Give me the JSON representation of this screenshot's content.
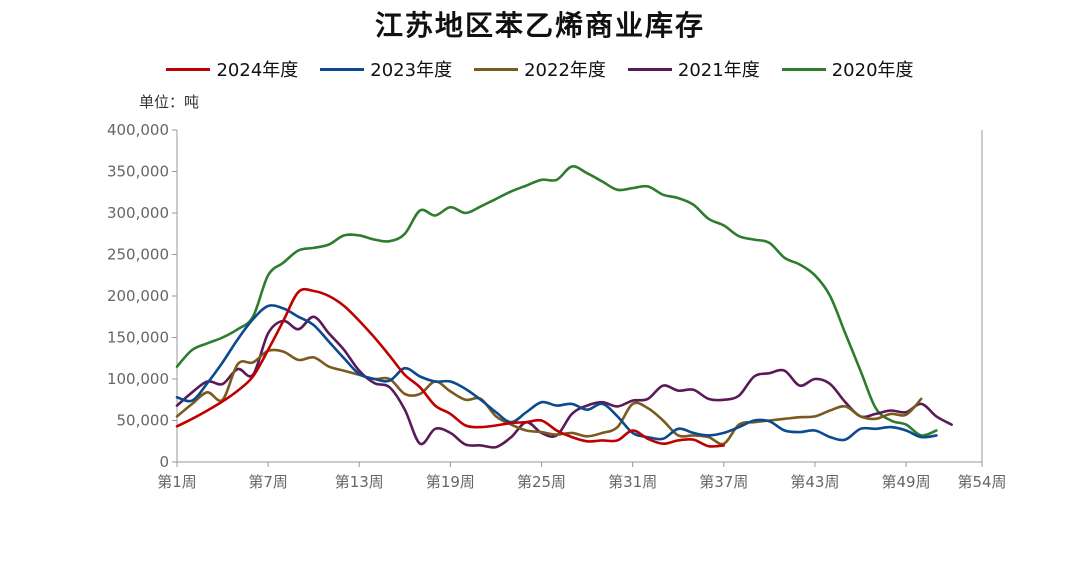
{
  "chart_data": {
    "type": "line",
    "title": "江苏地区苯乙烯商业库存",
    "unit_label": "单位：吨",
    "ylim": [
      0,
      400000
    ],
    "xlim": [
      1,
      54
    ],
    "y_ticks": [
      {
        "value": 0,
        "label": "0"
      },
      {
        "value": 50000,
        "label": "50,000"
      },
      {
        "value": 100000,
        "label": "100,000"
      },
      {
        "value": 150000,
        "label": "150,000"
      },
      {
        "value": 200000,
        "label": "200,000"
      },
      {
        "value": 250000,
        "label": "250,000"
      },
      {
        "value": 300000,
        "label": "300,000"
      },
      {
        "value": 350000,
        "label": "350,000"
      },
      {
        "value": 400000,
        "label": "400,000"
      }
    ],
    "x_ticks": [
      {
        "value": 1,
        "label": "第1周"
      },
      {
        "value": 7,
        "label": "第7周"
      },
      {
        "value": 13,
        "label": "第13周"
      },
      {
        "value": 19,
        "label": "第19周"
      },
      {
        "value": 25,
        "label": "第25周"
      },
      {
        "value": 31,
        "label": "第31周"
      },
      {
        "value": 37,
        "label": "第37周"
      },
      {
        "value": 43,
        "label": "第43周"
      },
      {
        "value": 49,
        "label": "第49周"
      },
      {
        "value": 54,
        "label": "第54周"
      }
    ],
    "legend_placement": "top",
    "grid": false,
    "series": [
      {
        "name": "2024年度",
        "color": "#c00000",
        "points": [
          [
            1,
            43000
          ],
          [
            2,
            52000
          ],
          [
            3,
            62000
          ],
          [
            4,
            73000
          ],
          [
            5,
            86000
          ],
          [
            6,
            103000
          ],
          [
            7,
            135000
          ],
          [
            8,
            170000
          ],
          [
            9,
            205000
          ],
          [
            10,
            206000
          ],
          [
            11,
            200000
          ],
          [
            12,
            188000
          ],
          [
            13,
            170000
          ],
          [
            14,
            150000
          ],
          [
            15,
            128000
          ],
          [
            16,
            105000
          ],
          [
            17,
            90000
          ],
          [
            18,
            68000
          ],
          [
            19,
            58000
          ],
          [
            20,
            44000
          ],
          [
            21,
            42000
          ],
          [
            22,
            44000
          ],
          [
            23,
            47000
          ],
          [
            24,
            48000
          ],
          [
            25,
            50000
          ],
          [
            26,
            38000
          ],
          [
            27,
            30000
          ],
          [
            28,
            25000
          ],
          [
            29,
            26000
          ],
          [
            30,
            26000
          ],
          [
            31,
            38000
          ],
          [
            32,
            28000
          ],
          [
            33,
            22000
          ],
          [
            34,
            26000
          ],
          [
            35,
            27000
          ],
          [
            36,
            19000
          ],
          [
            37,
            20000
          ]
        ]
      },
      {
        "name": "2023年度",
        "color": "#0b4a8f",
        "points": [
          [
            1,
            78000
          ],
          [
            2,
            74000
          ],
          [
            3,
            95000
          ],
          [
            4,
            120000
          ],
          [
            5,
            148000
          ],
          [
            6,
            172000
          ],
          [
            7,
            188000
          ],
          [
            8,
            185000
          ],
          [
            9,
            175000
          ],
          [
            10,
            165000
          ],
          [
            11,
            145000
          ],
          [
            12,
            125000
          ],
          [
            13,
            106000
          ],
          [
            14,
            100000
          ],
          [
            15,
            98000
          ],
          [
            16,
            113000
          ],
          [
            17,
            103000
          ],
          [
            18,
            97000
          ],
          [
            19,
            97000
          ],
          [
            20,
            88000
          ],
          [
            21,
            75000
          ],
          [
            22,
            60000
          ],
          [
            23,
            48000
          ],
          [
            24,
            60000
          ],
          [
            25,
            72000
          ],
          [
            26,
            68000
          ],
          [
            27,
            70000
          ],
          [
            28,
            63000
          ],
          [
            29,
            70000
          ],
          [
            30,
            55000
          ],
          [
            31,
            35000
          ],
          [
            32,
            30000
          ],
          [
            33,
            28000
          ],
          [
            34,
            40000
          ],
          [
            35,
            35000
          ],
          [
            36,
            32000
          ],
          [
            37,
            35000
          ],
          [
            38,
            42000
          ],
          [
            39,
            50000
          ],
          [
            40,
            49000
          ],
          [
            41,
            38000
          ],
          [
            42,
            36000
          ],
          [
            43,
            38000
          ],
          [
            44,
            30000
          ],
          [
            45,
            27000
          ],
          [
            46,
            40000
          ],
          [
            47,
            40000
          ],
          [
            48,
            42000
          ],
          [
            49,
            38000
          ],
          [
            50,
            30000
          ],
          [
            51,
            32000
          ]
        ]
      },
      {
        "name": "2022年度",
        "color": "#7a5a1e",
        "points": [
          [
            1,
            55000
          ],
          [
            2,
            70000
          ],
          [
            3,
            84000
          ],
          [
            4,
            75000
          ],
          [
            5,
            118000
          ],
          [
            6,
            120000
          ],
          [
            7,
            134000
          ],
          [
            8,
            133000
          ],
          [
            9,
            123000
          ],
          [
            10,
            126000
          ],
          [
            11,
            115000
          ],
          [
            12,
            110000
          ],
          [
            13,
            105000
          ],
          [
            14,
            100000
          ],
          [
            15,
            100000
          ],
          [
            16,
            82000
          ],
          [
            17,
            82000
          ],
          [
            18,
            97000
          ],
          [
            19,
            85000
          ],
          [
            20,
            75000
          ],
          [
            21,
            76000
          ],
          [
            22,
            55000
          ],
          [
            23,
            45000
          ],
          [
            24,
            38000
          ],
          [
            25,
            36000
          ],
          [
            26,
            33000
          ],
          [
            27,
            35000
          ],
          [
            28,
            31000
          ],
          [
            29,
            35000
          ],
          [
            30,
            42000
          ],
          [
            31,
            70000
          ],
          [
            32,
            65000
          ],
          [
            33,
            50000
          ],
          [
            34,
            32000
          ],
          [
            35,
            32000
          ],
          [
            36,
            30000
          ],
          [
            37,
            22000
          ],
          [
            38,
            45000
          ],
          [
            39,
            48000
          ],
          [
            40,
            50000
          ],
          [
            41,
            52000
          ],
          [
            42,
            54000
          ],
          [
            43,
            55000
          ],
          [
            44,
            62000
          ],
          [
            45,
            67000
          ],
          [
            46,
            55000
          ],
          [
            47,
            52000
          ],
          [
            48,
            58000
          ],
          [
            49,
            57000
          ],
          [
            50,
            76000
          ]
        ]
      },
      {
        "name": "2021年度",
        "color": "#5a1a5a",
        "points": [
          [
            1,
            68000
          ],
          [
            2,
            84000
          ],
          [
            3,
            97000
          ],
          [
            4,
            94000
          ],
          [
            5,
            112000
          ],
          [
            6,
            105000
          ],
          [
            7,
            155000
          ],
          [
            8,
            170000
          ],
          [
            9,
            160000
          ],
          [
            10,
            175000
          ],
          [
            11,
            155000
          ],
          [
            12,
            135000
          ],
          [
            13,
            110000
          ],
          [
            14,
            95000
          ],
          [
            15,
            90000
          ],
          [
            16,
            63000
          ],
          [
            17,
            22000
          ],
          [
            18,
            40000
          ],
          [
            19,
            35000
          ],
          [
            20,
            21000
          ],
          [
            21,
            20000
          ],
          [
            22,
            18000
          ],
          [
            23,
            30000
          ],
          [
            24,
            48000
          ],
          [
            25,
            35000
          ],
          [
            26,
            32000
          ],
          [
            27,
            58000
          ],
          [
            28,
            68000
          ],
          [
            29,
            72000
          ],
          [
            30,
            67000
          ],
          [
            31,
            74000
          ],
          [
            32,
            76000
          ],
          [
            33,
            92000
          ],
          [
            34,
            86000
          ],
          [
            35,
            87000
          ],
          [
            36,
            76000
          ],
          [
            37,
            75000
          ],
          [
            38,
            80000
          ],
          [
            39,
            103000
          ],
          [
            40,
            107000
          ],
          [
            41,
            110000
          ],
          [
            42,
            92000
          ],
          [
            43,
            100000
          ],
          [
            44,
            94000
          ],
          [
            45,
            72000
          ],
          [
            46,
            55000
          ],
          [
            47,
            58000
          ],
          [
            48,
            62000
          ],
          [
            49,
            60000
          ],
          [
            50,
            70000
          ],
          [
            51,
            55000
          ],
          [
            52,
            45000
          ]
        ]
      },
      {
        "name": "2020年度",
        "color": "#2e7d2e",
        "points": [
          [
            1,
            115000
          ],
          [
            2,
            135000
          ],
          [
            3,
            143000
          ],
          [
            4,
            150000
          ],
          [
            5,
            160000
          ],
          [
            6,
            175000
          ],
          [
            7,
            225000
          ],
          [
            8,
            240000
          ],
          [
            9,
            255000
          ],
          [
            10,
            258000
          ],
          [
            11,
            262000
          ],
          [
            12,
            273000
          ],
          [
            13,
            273000
          ],
          [
            14,
            268000
          ],
          [
            15,
            266000
          ],
          [
            16,
            275000
          ],
          [
            17,
            303000
          ],
          [
            18,
            297000
          ],
          [
            19,
            307000
          ],
          [
            20,
            300000
          ],
          [
            21,
            308000
          ],
          [
            22,
            317000
          ],
          [
            23,
            326000
          ],
          [
            24,
            333000
          ],
          [
            25,
            340000
          ],
          [
            26,
            340000
          ],
          [
            27,
            356000
          ],
          [
            28,
            348000
          ],
          [
            29,
            338000
          ],
          [
            30,
            328000
          ],
          [
            31,
            330000
          ],
          [
            32,
            332000
          ],
          [
            33,
            322000
          ],
          [
            34,
            318000
          ],
          [
            35,
            310000
          ],
          [
            36,
            293000
          ],
          [
            37,
            285000
          ],
          [
            38,
            272000
          ],
          [
            39,
            268000
          ],
          [
            40,
            264000
          ],
          [
            41,
            246000
          ],
          [
            42,
            238000
          ],
          [
            43,
            225000
          ],
          [
            44,
            200000
          ],
          [
            45,
            155000
          ],
          [
            46,
            110000
          ],
          [
            47,
            65000
          ],
          [
            48,
            50000
          ],
          [
            49,
            45000
          ],
          [
            50,
            32000
          ],
          [
            51,
            38000
          ]
        ]
      }
    ]
  }
}
